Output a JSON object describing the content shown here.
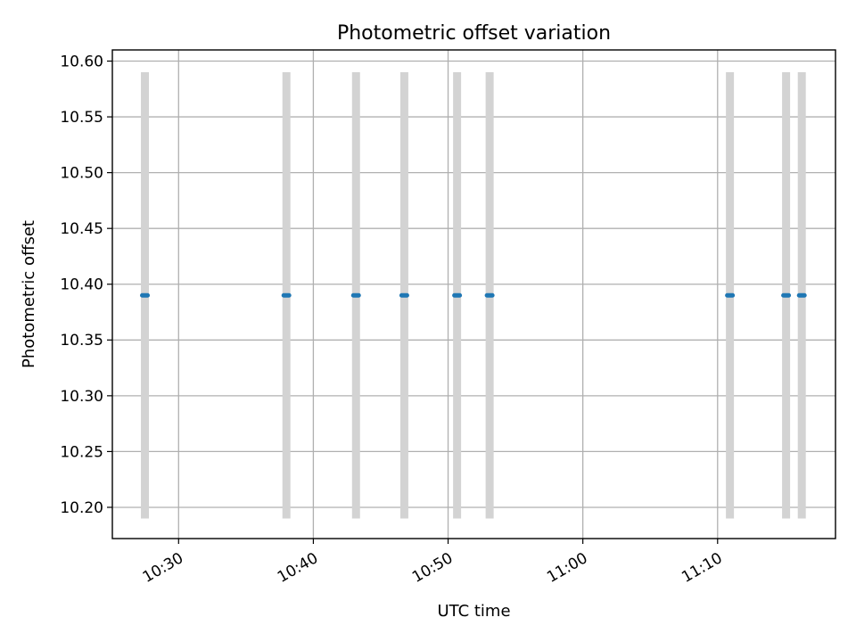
{
  "chart_data": {
    "type": "scatter",
    "title": "Photometric offset variation",
    "xlabel": "UTC time",
    "ylabel": "Photometric offset",
    "x_ticks": [
      "10:30",
      "10:40",
      "10:50",
      "11:00",
      "11:10"
    ],
    "y_ticks": [
      "10.20",
      "10.25",
      "10.30",
      "10.35",
      "10.40",
      "10.45",
      "10.50",
      "10.55",
      "10.60"
    ],
    "xlim": [
      "10:25:05",
      "11:18:45"
    ],
    "ylim": [
      10.172,
      10.61
    ],
    "grid": true,
    "colors": {
      "points": "#1f77b4",
      "error_bars": "#d3d3d3",
      "grid": "#b0b0b0"
    },
    "series": [
      {
        "x": [
          "10:27:30",
          "10:38:00",
          "10:43:10",
          "10:46:45",
          "10:50:40",
          "10:53:05",
          "11:10:55",
          "11:15:05",
          "11:16:15"
        ],
        "y": [
          10.39,
          10.39,
          10.39,
          10.39,
          10.39,
          10.39,
          10.39,
          10.39,
          10.39
        ],
        "y_err": [
          0.2,
          0.2,
          0.2,
          0.2,
          0.2,
          0.2,
          0.2,
          0.2,
          0.2
        ]
      }
    ]
  }
}
